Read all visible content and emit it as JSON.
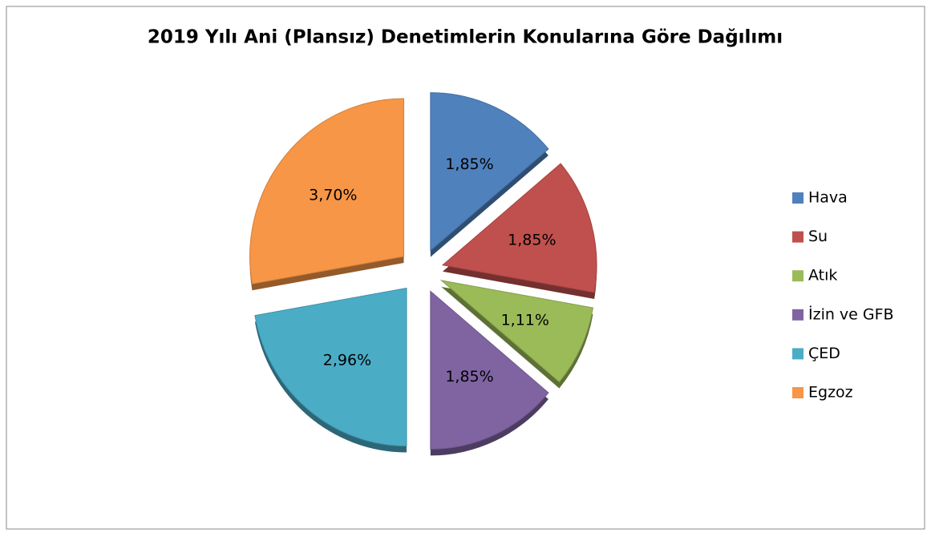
{
  "chart_data": {
    "type": "pie",
    "title": "2019 Yılı Ani (Plansız) Denetimlerin Konularına Göre Dağılımı",
    "categories": [
      "Hava",
      "Su",
      "Atık",
      "İzin ve GFB",
      "ÇED",
      "Egzoz"
    ],
    "values": [
      1.85,
      1.85,
      1.11,
      1.85,
      2.96,
      3.7
    ],
    "value_labels": [
      "1,85%",
      "1,85%",
      "1,11%",
      "1,85%",
      "2,96%",
      "3,70%"
    ],
    "colors": [
      "#4f81bd",
      "#c0504d",
      "#9bbb59",
      "#8064a2",
      "#4bacc6",
      "#f79646"
    ],
    "legend": "right"
  }
}
